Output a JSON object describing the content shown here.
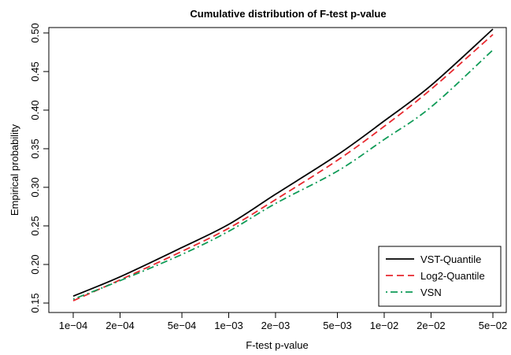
{
  "chart_data": {
    "type": "line",
    "title": "Cumulative distribution of F-test p-value",
    "xlabel": "F-test p-value",
    "ylabel": "Empirical probability",
    "x_scale": "log",
    "xlim": [
      0.0001,
      0.05
    ],
    "ylim": [
      0.15,
      0.505
    ],
    "x_ticks": [
      {
        "value": 0.0001,
        "label": "1e−04"
      },
      {
        "value": 0.0002,
        "label": "2e−04"
      },
      {
        "value": 0.0005,
        "label": "5e−04"
      },
      {
        "value": 0.001,
        "label": "1e−03"
      },
      {
        "value": 0.002,
        "label": "2e−03"
      },
      {
        "value": 0.005,
        "label": "5e−03"
      },
      {
        "value": 0.01,
        "label": "1e−02"
      },
      {
        "value": 0.02,
        "label": "2e−02"
      },
      {
        "value": 0.05,
        "label": "5e−02"
      }
    ],
    "y_ticks": [
      {
        "value": 0.15,
        "label": "0.15"
      },
      {
        "value": 0.2,
        "label": "0.20"
      },
      {
        "value": 0.25,
        "label": "0.25"
      },
      {
        "value": 0.3,
        "label": "0.30"
      },
      {
        "value": 0.35,
        "label": "0.35"
      },
      {
        "value": 0.4,
        "label": "0.40"
      },
      {
        "value": 0.45,
        "label": "0.45"
      },
      {
        "value": 0.5,
        "label": "0.50"
      }
    ],
    "grid": false,
    "legend_position": "bottom-right",
    "x": [
      0.0001,
      0.0002,
      0.0005,
      0.001,
      0.002,
      0.005,
      0.01,
      0.02,
      0.05
    ],
    "series": [
      {
        "name": "VST-Quantile",
        "color": "#000000",
        "dash": "solid",
        "values": [
          0.159,
          0.184,
          0.222,
          0.252,
          0.291,
          0.342,
          0.386,
          0.432,
          0.505
        ]
      },
      {
        "name": "Log2-Quantile",
        "color": "#e8282e",
        "dash": "dashed",
        "values": [
          0.153,
          0.18,
          0.217,
          0.247,
          0.284,
          0.335,
          0.379,
          0.427,
          0.498
        ]
      },
      {
        "name": "VSN",
        "color": "#0f9b57",
        "dash": "dotdash",
        "values": [
          0.155,
          0.179,
          0.213,
          0.243,
          0.279,
          0.321,
          0.362,
          0.404,
          0.478
        ]
      }
    ]
  }
}
